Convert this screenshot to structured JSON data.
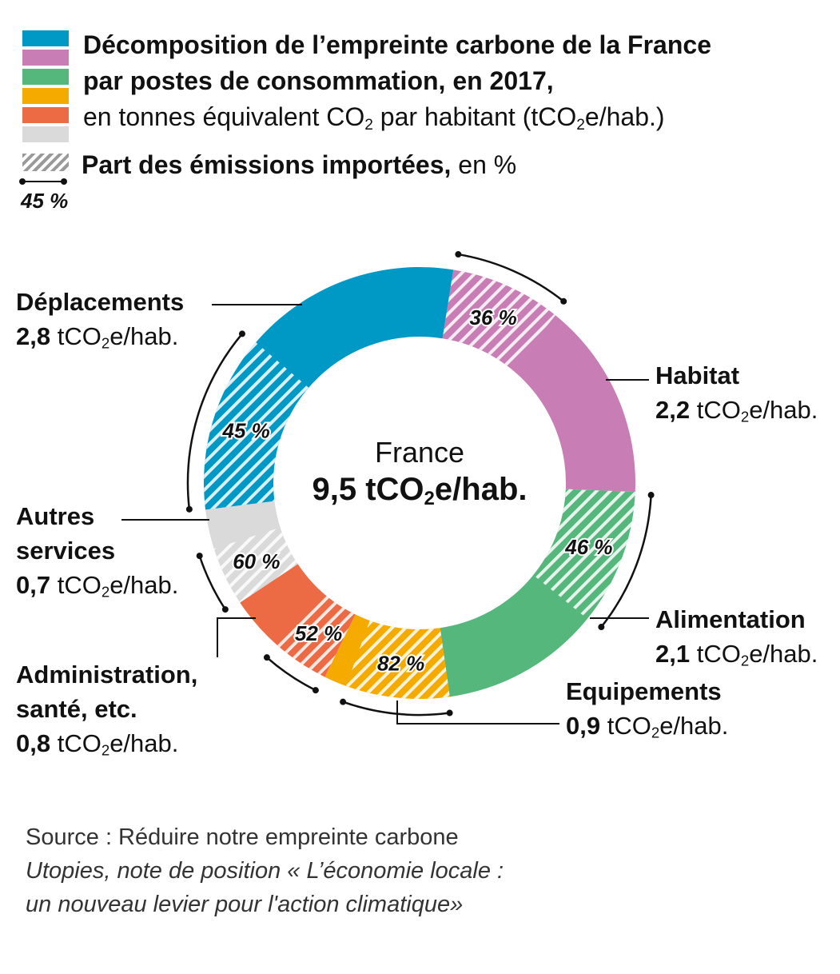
{
  "title": {
    "line1": "Décomposition de l’empreinte carbone de la France",
    "line2": "par postes de consommation, en 2017,",
    "line3_pre": "en tonnes équivalent CO",
    "line3_sub": "2",
    "line3_mid": " par habitant (tCO",
    "line3_sub2": "2",
    "line3_post": "e/hab.)"
  },
  "legend": {
    "imported_bold": "Part des émissions importées,",
    "imported_rest": " en %",
    "example_pct": "45 %"
  },
  "center": {
    "name": "France",
    "value": "9,5",
    "unit_pre": " tCO",
    "unit_sub": "2",
    "unit_post": "e/hab."
  },
  "unit": {
    "pre": " tCO",
    "sub": "2",
    "post": "e/hab."
  },
  "source": {
    "line1": "Source  : Réduire notre empreinte carbone",
    "line2": "Utopies, note de position « L’économie locale :",
    "line3": "un nouveau levier pour l'action climatique»"
  },
  "chart_data": {
    "type": "pie",
    "total": 9.5,
    "unit": "tCO2e/hab.",
    "categories": [
      {
        "name": "Habitat",
        "value_label": "2,2",
        "value": 2.2,
        "imported_pct": 36,
        "imported_label": "36 %",
        "color": "#C97DB5"
      },
      {
        "name": "Alimentation",
        "value_label": "2,1",
        "value": 2.1,
        "imported_pct": 46,
        "imported_label": "46 %",
        "color": "#56B77D"
      },
      {
        "name": "Equipements",
        "value_label": "0,9",
        "value": 0.9,
        "imported_pct": 82,
        "imported_label": "82 %",
        "color": "#F5AA00"
      },
      {
        "name": "Administration, santé, etc.",
        "name_line1": "Administration,",
        "name_line2": "santé, etc.",
        "value_label": "0,8",
        "value": 0.8,
        "imported_pct": 52,
        "imported_label": "52 %",
        "color": "#EC6B45"
      },
      {
        "name": "Autres services",
        "name_line1": "Autres",
        "name_line2": "services",
        "value_label": "0,7",
        "value": 0.7,
        "imported_pct": 60,
        "imported_label": "60 %",
        "color": "#DADADA"
      },
      {
        "name": "Déplacements",
        "value_label": "2,8",
        "value": 2.8,
        "imported_pct": 45,
        "imported_label": "45 %",
        "color": "#0099C6"
      }
    ]
  }
}
